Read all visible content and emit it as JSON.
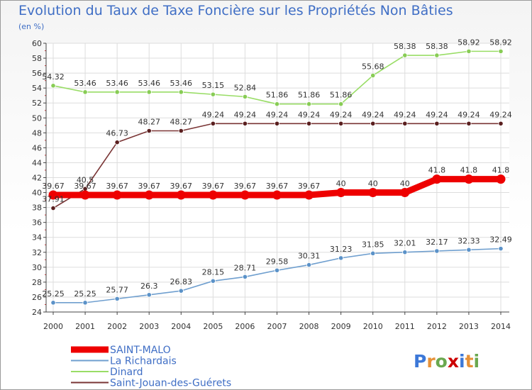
{
  "chart_data": {
    "type": "line",
    "title": "Evolution du Taux de Taxe Foncière sur les Propriétés Non Bâties",
    "ylabel": "(en %)",
    "xlabel": "",
    "ylim": [
      24,
      60
    ],
    "yticks": [
      24,
      26,
      28,
      30,
      32,
      34,
      36,
      38,
      40,
      42,
      44,
      46,
      48,
      50,
      52,
      54,
      56,
      58,
      60
    ],
    "categories": [
      "2000",
      "2001",
      "2002",
      "2003",
      "2004",
      "2005",
      "2006",
      "2007",
      "2008",
      "2009",
      "2010",
      "2011",
      "2012",
      "2013",
      "2014"
    ],
    "series": [
      {
        "name": "SAINT-MALO",
        "color": "#ee0000",
        "values": [
          39.67,
          39.67,
          39.67,
          39.67,
          39.67,
          39.67,
          39.67,
          39.67,
          39.67,
          40,
          40,
          40,
          41.8,
          41.8,
          41.8
        ],
        "labels": [
          "39.67",
          "39.67",
          "39.67",
          "39.67",
          "39.67",
          "39.67",
          "39.67",
          "39.67",
          "39.67",
          "40",
          "40",
          "40",
          "41.8",
          "41.8",
          "41.8"
        ]
      },
      {
        "name": "La Richardais",
        "color": "#6f9fcf",
        "values": [
          25.25,
          25.25,
          25.77,
          26.3,
          26.83,
          28.15,
          28.71,
          29.58,
          30.31,
          31.23,
          31.85,
          32.01,
          32.17,
          32.33,
          32.49
        ],
        "labels": [
          "25.25",
          "25.25",
          "25.77",
          "26.3",
          "26.83",
          "28.15",
          "28.71",
          "29.58",
          "30.31",
          "31.23",
          "31.85",
          "32.01",
          "32.17",
          "32.33",
          "32.49"
        ]
      },
      {
        "name": "Dinard",
        "color": "#99dd66",
        "values": [
          54.32,
          53.46,
          53.46,
          53.46,
          53.46,
          53.15,
          52.84,
          51.86,
          51.86,
          51.86,
          55.68,
          58.38,
          58.38,
          58.92,
          58.92
        ],
        "labels": [
          "54.32",
          "53.46",
          "53.46",
          "53.46",
          "53.46",
          "53.15",
          "52.84",
          "51.86",
          "51.86",
          "51.86",
          "55.68",
          "58.38",
          "58.38",
          "58.92",
          "58.92"
        ]
      },
      {
        "name": "Saint-Jouan-des-Guérets",
        "color": "#7a3535",
        "values": [
          37.91,
          40.5,
          46.73,
          48.27,
          48.27,
          49.24,
          49.24,
          49.24,
          49.24,
          49.24,
          49.24,
          49.24,
          49.24,
          49.24,
          49.24
        ],
        "labels": [
          "37.91",
          "40.5",
          "46.73",
          "48.27",
          "48.27",
          "49.24",
          "49.24",
          "49.24",
          "49.24",
          "49.24",
          "49.24",
          "49.24",
          "49.24",
          "49.24",
          "49.24"
        ]
      }
    ],
    "legend_position": "bottom-left",
    "grid": true
  },
  "logo": {
    "text": "Proxiti",
    "letters": [
      "P",
      "r",
      "o",
      "x",
      "i",
      "t",
      "i"
    ],
    "colors": [
      "#3c78d8",
      "#e69138",
      "#6aa84f",
      "#cc0000",
      "#3c78d8",
      "#e69138",
      "#6aa84f"
    ]
  }
}
